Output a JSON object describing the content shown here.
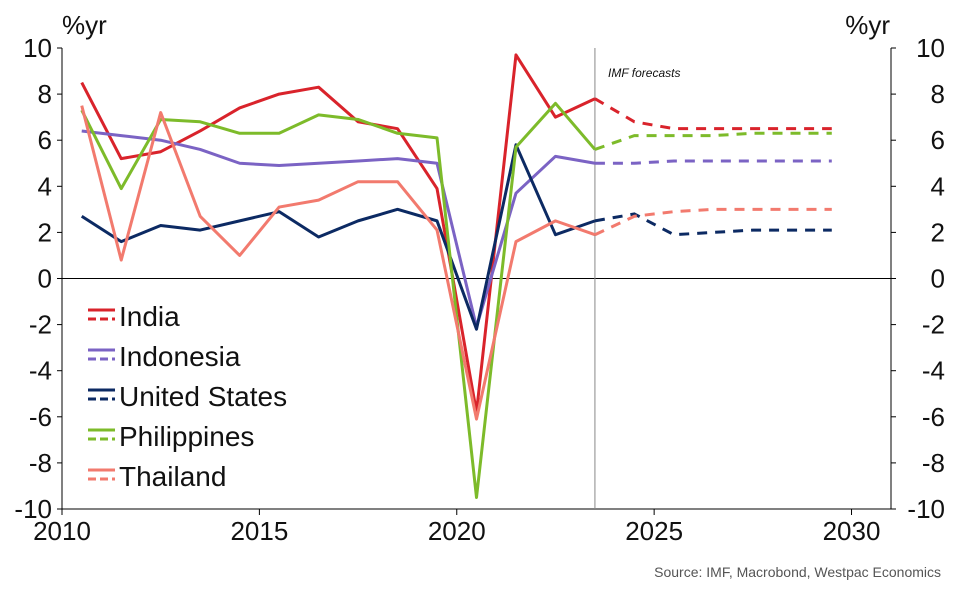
{
  "chart_data": {
    "type": "line",
    "unit_left": "%yr",
    "unit_right": "%yr",
    "ylim": [
      -10,
      10
    ],
    "xlim": [
      2010,
      2031
    ],
    "yticks": [
      10,
      8,
      6,
      4,
      2,
      0,
      -2,
      -4,
      -6,
      -8,
      -10
    ],
    "xticks": [
      2010,
      2015,
      2020,
      2025,
      2030
    ],
    "forecast_start": 2023.5,
    "annotation": "IMF forecasts",
    "source": "Source: IMF, Macrobond, Westpac Economics",
    "legend_position": "left-center",
    "series": [
      {
        "name": "India",
        "color": "#d9232b",
        "x": [
          2010.5,
          2011.5,
          2012.5,
          2013.5,
          2014.5,
          2015.5,
          2016.5,
          2017.5,
          2018.5,
          2019.5,
          2020.5,
          2021.5,
          2022.5,
          2023.5
        ],
        "values": [
          8.5,
          5.2,
          5.5,
          6.4,
          7.4,
          8.0,
          8.3,
          6.8,
          6.5,
          3.9,
          -5.8,
          9.7,
          7.0,
          7.8
        ],
        "forecast_x": [
          2023.5,
          2024.5,
          2025.5,
          2026.5,
          2027.5,
          2028.5,
          2029.5
        ],
        "forecast": [
          7.8,
          6.8,
          6.5,
          6.5,
          6.5,
          6.5,
          6.5
        ]
      },
      {
        "name": "Indonesia",
        "color": "#7b63c4",
        "x": [
          2010.5,
          2011.5,
          2012.5,
          2013.5,
          2014.5,
          2015.5,
          2016.5,
          2017.5,
          2018.5,
          2019.5,
          2020.5,
          2021.5,
          2022.5,
          2023.5
        ],
        "values": [
          6.4,
          6.2,
          6.0,
          5.6,
          5.0,
          4.9,
          5.0,
          5.1,
          5.2,
          5.0,
          -2.1,
          3.7,
          5.3,
          5.0
        ],
        "forecast_x": [
          2023.5,
          2024.5,
          2025.5,
          2026.5,
          2027.5,
          2028.5,
          2029.5
        ],
        "forecast": [
          5.0,
          5.0,
          5.1,
          5.1,
          5.1,
          5.1,
          5.1
        ]
      },
      {
        "name": "United States",
        "color": "#0c2a63",
        "x": [
          2010.5,
          2011.5,
          2012.5,
          2013.5,
          2014.5,
          2015.5,
          2016.5,
          2017.5,
          2018.5,
          2019.5,
          2020.5,
          2021.5,
          2022.5,
          2023.5
        ],
        "values": [
          2.7,
          1.6,
          2.3,
          2.1,
          2.5,
          2.9,
          1.8,
          2.5,
          3.0,
          2.5,
          -2.2,
          5.8,
          1.9,
          2.5
        ],
        "forecast_x": [
          2023.5,
          2024.5,
          2025.5,
          2026.5,
          2027.5,
          2028.5,
          2029.5
        ],
        "forecast": [
          2.5,
          2.8,
          1.9,
          2.0,
          2.1,
          2.1,
          2.1
        ]
      },
      {
        "name": "Philippines",
        "color": "#7dbb2a",
        "x": [
          2010.5,
          2011.5,
          2012.5,
          2013.5,
          2014.5,
          2015.5,
          2016.5,
          2017.5,
          2018.5,
          2019.5,
          2020.5,
          2021.5,
          2022.5,
          2023.5
        ],
        "values": [
          7.3,
          3.9,
          6.9,
          6.8,
          6.3,
          6.3,
          7.1,
          6.9,
          6.3,
          6.1,
          -9.5,
          5.7,
          7.6,
          5.6
        ],
        "forecast_x": [
          2023.5,
          2024.5,
          2025.5,
          2026.5,
          2027.5,
          2028.5,
          2029.5
        ],
        "forecast": [
          5.6,
          6.2,
          6.2,
          6.2,
          6.3,
          6.3,
          6.3
        ]
      },
      {
        "name": "Thailand",
        "color": "#f27a6e",
        "x": [
          2010.5,
          2011.5,
          2012.5,
          2013.5,
          2014.5,
          2015.5,
          2016.5,
          2017.5,
          2018.5,
          2019.5,
          2020.5,
          2021.5,
          2022.5,
          2023.5
        ],
        "values": [
          7.5,
          0.8,
          7.2,
          2.7,
          1.0,
          3.1,
          3.4,
          4.2,
          4.2,
          2.1,
          -6.1,
          1.6,
          2.5,
          1.9
        ],
        "forecast_x": [
          2023.5,
          2024.5,
          2025.5,
          2026.5,
          2027.5,
          2028.5,
          2029.5
        ],
        "forecast": [
          1.9,
          2.7,
          2.9,
          3.0,
          3.0,
          3.0,
          3.0
        ]
      }
    ]
  }
}
